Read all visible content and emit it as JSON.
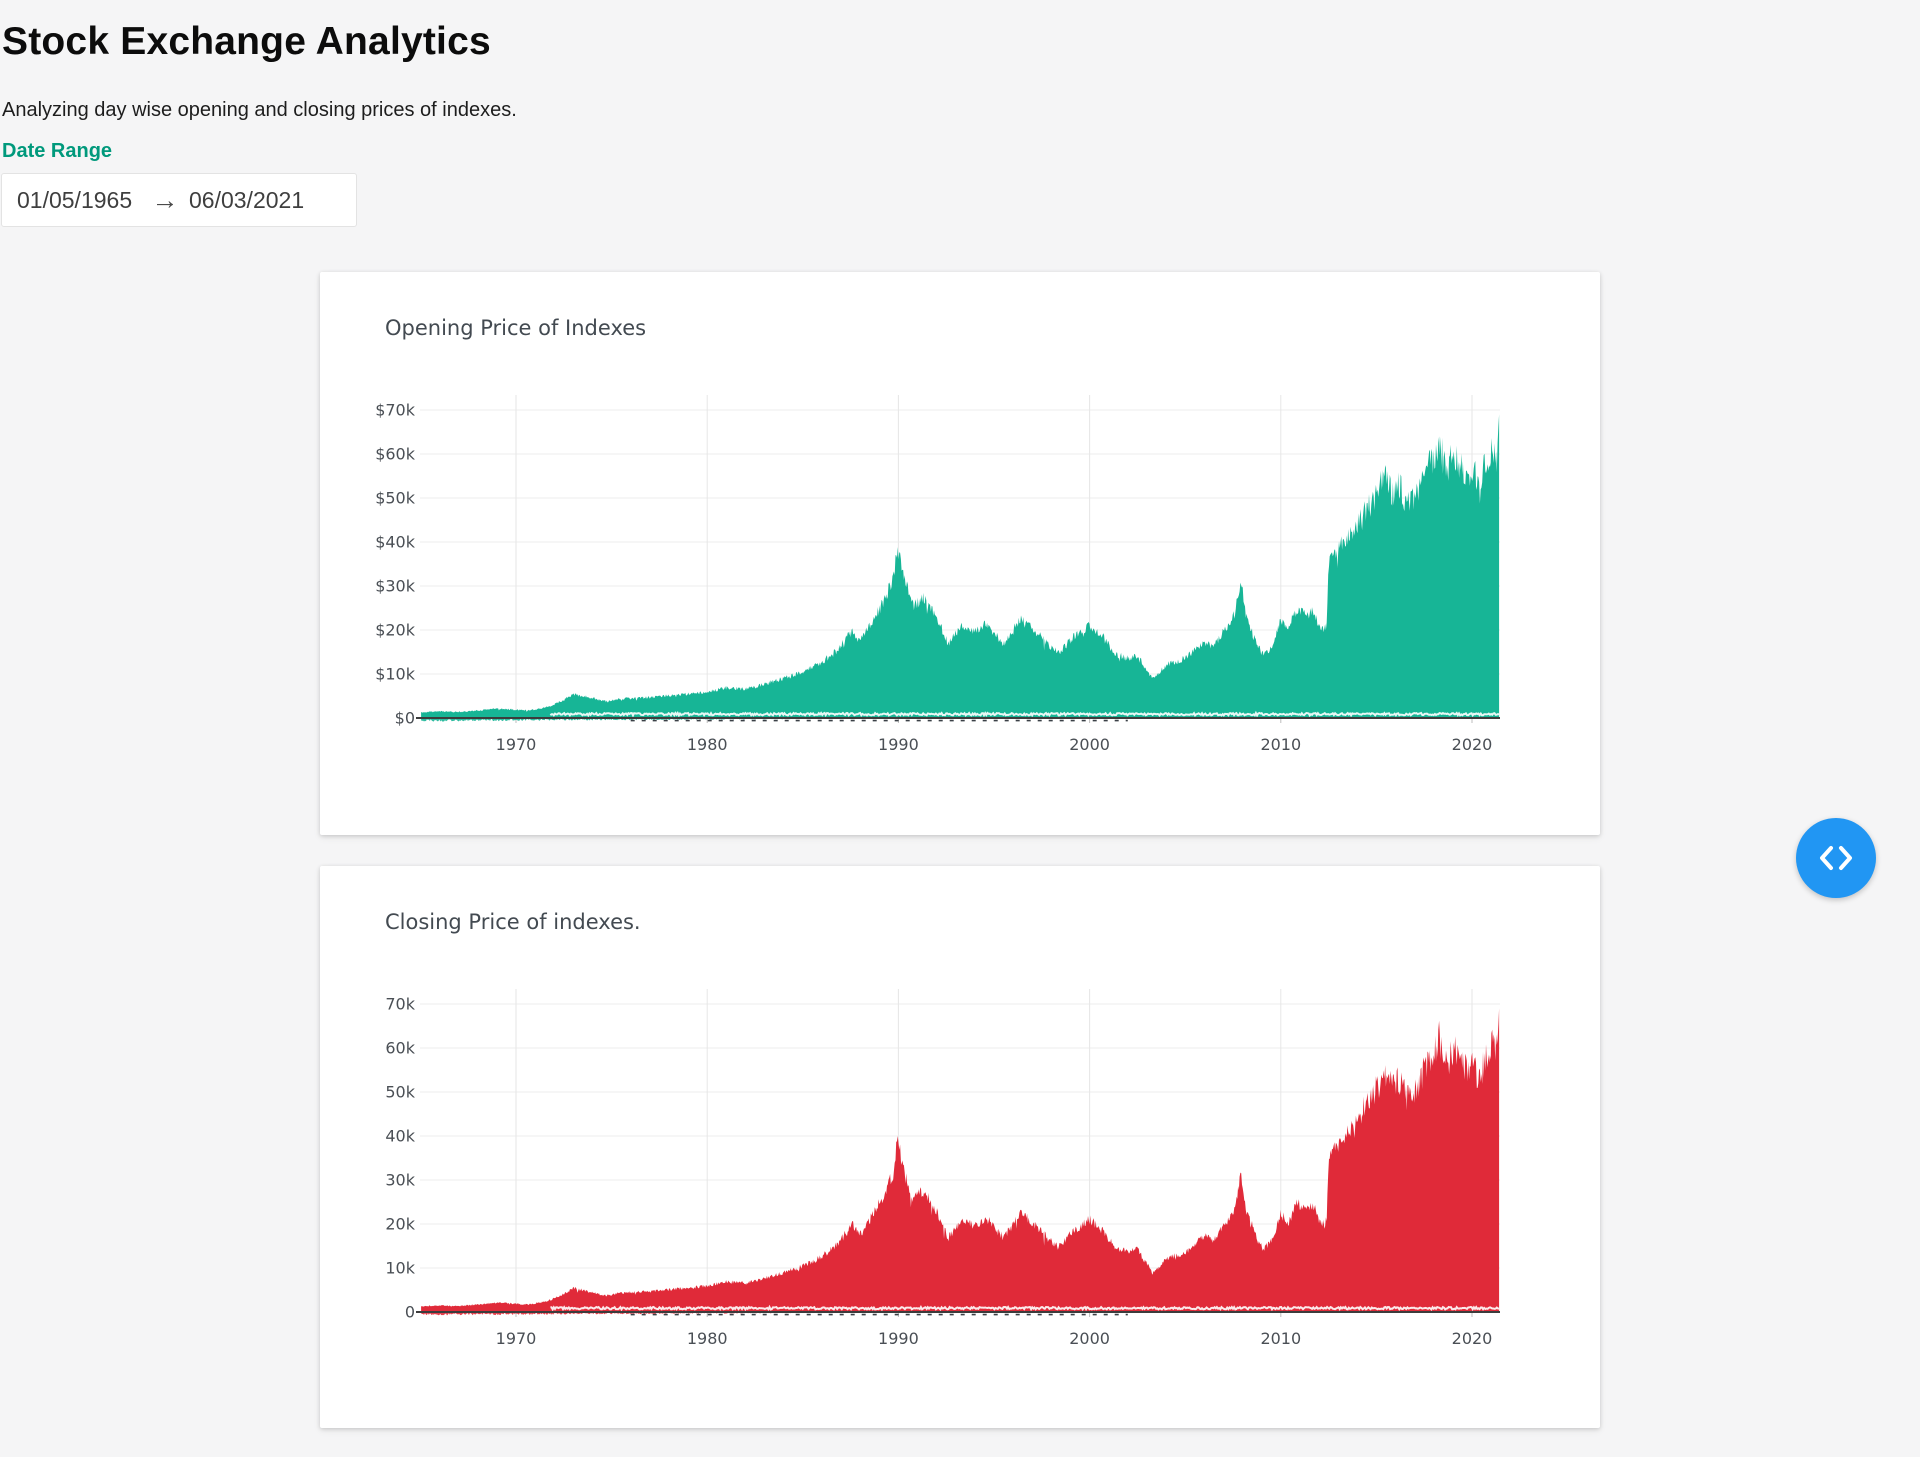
{
  "page": {
    "title": "Stock Exchange Analytics",
    "subtitle": "Analyzing day wise opening and closing prices of indexes.",
    "date_range": {
      "label": "Date Range",
      "start": "01/05/1965",
      "end": "06/03/2021",
      "arrow": "→"
    },
    "fab_button": {
      "icon": "code-chevrons-icon"
    }
  },
  "colors": {
    "background": "#F5F5F6",
    "card": "#FFFFFF",
    "accent_teal": "#00997C",
    "opening_fill": "#17B596",
    "closing_fill": "#E02A39",
    "button_blue": "#2196F3",
    "axis_line": "#3C3C3C",
    "grid_line": "#EAEAEA",
    "tick_text": "#4A4F55"
  },
  "chart_data": [
    {
      "type": "area",
      "title": "Opening Price of Indexes",
      "xlabel": "",
      "ylabel": "",
      "xticks": [
        1970,
        1980,
        1990,
        2000,
        2010,
        2020
      ],
      "ytick_labels": [
        "$0",
        "$10k",
        "$20k",
        "$30k",
        "$40k",
        "$50k",
        "$60k",
        "$70k"
      ],
      "xlim": [
        1964.98,
        2021.45
      ],
      "ylim": [
        0,
        70
      ],
      "grid": true,
      "legend_position": "none",
      "value_unit": "thousands",
      "series": [
        {
          "name": "opening-price",
          "color": "#17B596",
          "points_year_value_thousands": [
            [
              1965.04,
              1.3
            ],
            [
              1965.5,
              1.4
            ],
            [
              1966,
              1.5
            ],
            [
              1966.5,
              1.4
            ],
            [
              1967,
              1.4
            ],
            [
              1967.5,
              1.5
            ],
            [
              1968,
              1.7
            ],
            [
              1968.5,
              1.9
            ],
            [
              1969,
              2.1
            ],
            [
              1969.5,
              2
            ],
            [
              1970,
              1.9
            ],
            [
              1970.6,
              1.7
            ],
            [
              1971.2,
              2.1
            ],
            [
              1971.8,
              2.7
            ],
            [
              1972.4,
              3.9
            ],
            [
              1973,
              5.4
            ],
            [
              1973.5,
              5
            ],
            [
              1974.1,
              4.4
            ],
            [
              1974.7,
              3.7
            ],
            [
              1975.3,
              4.2
            ],
            [
              1976,
              4.5
            ],
            [
              1977,
              4.7
            ],
            [
              1978,
              5.1
            ],
            [
              1979,
              5.5
            ],
            [
              1980,
              5.9
            ],
            [
              1981,
              6.9
            ],
            [
              1982,
              6.6
            ],
            [
              1983,
              7.7
            ],
            [
              1984,
              9
            ],
            [
              1985,
              10.4
            ],
            [
              1986,
              12.6
            ],
            [
              1986.8,
              15.4
            ],
            [
              1987.6,
              19.8
            ],
            [
              1988,
              17.4
            ],
            [
              1988.6,
              21.6
            ],
            [
              1989.2,
              26.2
            ],
            [
              1989.75,
              32
            ],
            [
              1989.95,
              39
            ],
            [
              1990.35,
              30.8
            ],
            [
              1990.8,
              25.4
            ],
            [
              1991.3,
              27.6
            ],
            [
              1992,
              23
            ],
            [
              1992.6,
              16.8
            ],
            [
              1993.3,
              20.8
            ],
            [
              1994,
              19.8
            ],
            [
              1994.6,
              21.3
            ],
            [
              1995.5,
              16.9
            ],
            [
              1996.4,
              22.4
            ],
            [
              1997.2,
              19.6
            ],
            [
              1997.9,
              16.4
            ],
            [
              1998.4,
              14.8
            ],
            [
              1999.2,
              18.6
            ],
            [
              2000,
              21
            ],
            [
              2000.7,
              18.4
            ],
            [
              2001.4,
              14.4
            ],
            [
              2002,
              13.6
            ],
            [
              2002.5,
              14.2
            ],
            [
              2003.3,
              8.9
            ],
            [
              2004,
              12
            ],
            [
              2005,
              13.6
            ],
            [
              2006,
              17.2
            ],
            [
              2006.5,
              16.2
            ],
            [
              2007,
              19.6
            ],
            [
              2007.6,
              23.6
            ],
            [
              2007.9,
              31.4
            ],
            [
              2008.2,
              23.2
            ],
            [
              2008.7,
              17.2
            ],
            [
              2009.1,
              14.2
            ],
            [
              2009.6,
              16.8
            ],
            [
              2010,
              22.4
            ],
            [
              2010.4,
              20.2
            ],
            [
              2010.8,
              24.8
            ],
            [
              2011.3,
              23.4
            ],
            [
              2011.7,
              24.2
            ],
            [
              2012.1,
              20.2
            ],
            [
              2012.4,
              20.6
            ],
            [
              2012.5,
              35
            ],
            [
              2013,
              38.4
            ],
            [
              2013.6,
              41.6
            ],
            [
              2014.2,
              45.2
            ],
            [
              2014.8,
              49.6
            ],
            [
              2015.4,
              54.6
            ],
            [
              2015.9,
              50.8
            ],
            [
              2016.2,
              53
            ],
            [
              2016.6,
              48.4
            ],
            [
              2017,
              50.6
            ],
            [
              2017.5,
              54.6
            ],
            [
              2018,
              59.4
            ],
            [
              2018.3,
              62.4
            ],
            [
              2018.65,
              56.4
            ],
            [
              2019,
              59.6
            ],
            [
              2019.45,
              57
            ],
            [
              2019.85,
              54.6
            ],
            [
              2020.1,
              58.8
            ],
            [
              2020.3,
              52.6
            ],
            [
              2020.65,
              56.6
            ],
            [
              2021,
              60.8
            ],
            [
              2021.2,
              59.2
            ],
            [
              2021.35,
              63
            ],
            [
              2021.42,
              69
            ]
          ]
        }
      ]
    },
    {
      "type": "area",
      "title": "Closing Price of indexes.",
      "xlabel": "",
      "ylabel": "",
      "xticks": [
        1970,
        1980,
        1990,
        2000,
        2010,
        2020
      ],
      "ytick_labels": [
        "0",
        "10k",
        "20k",
        "30k",
        "40k",
        "50k",
        "60k",
        "70k"
      ],
      "xlim": [
        1964.98,
        2021.45
      ],
      "ylim": [
        0,
        70
      ],
      "grid": true,
      "legend_position": "none",
      "value_unit": "thousands",
      "series": [
        {
          "name": "closing-price",
          "color": "#E02A39",
          "points_year_value_thousands": [
            [
              1965.04,
              1.3
            ],
            [
              1965.5,
              1.4
            ],
            [
              1966,
              1.5
            ],
            [
              1966.5,
              1.4
            ],
            [
              1967,
              1.4
            ],
            [
              1967.5,
              1.5
            ],
            [
              1968,
              1.7
            ],
            [
              1968.5,
              1.9
            ],
            [
              1969,
              2.1
            ],
            [
              1969.5,
              2
            ],
            [
              1970,
              1.9
            ],
            [
              1970.6,
              1.7
            ],
            [
              1971.2,
              2.1
            ],
            [
              1971.8,
              2.7
            ],
            [
              1972.4,
              3.9
            ],
            [
              1973,
              5.4
            ],
            [
              1973.5,
              5
            ],
            [
              1974.1,
              4.4
            ],
            [
              1974.7,
              3.7
            ],
            [
              1975.3,
              4.2
            ],
            [
              1976,
              4.5
            ],
            [
              1977,
              4.7
            ],
            [
              1978,
              5.1
            ],
            [
              1979,
              5.5
            ],
            [
              1980,
              5.9
            ],
            [
              1981,
              6.9
            ],
            [
              1982,
              6.6
            ],
            [
              1983,
              7.7
            ],
            [
              1984,
              9
            ],
            [
              1985,
              10.4
            ],
            [
              1986,
              12.6
            ],
            [
              1986.8,
              15.4
            ],
            [
              1987.6,
              19.8
            ],
            [
              1988,
              17.4
            ],
            [
              1988.6,
              21.6
            ],
            [
              1989.2,
              26.2
            ],
            [
              1989.75,
              32
            ],
            [
              1989.95,
              39
            ],
            [
              1990.35,
              30.8
            ],
            [
              1990.8,
              25.4
            ],
            [
              1991.3,
              27.6
            ],
            [
              1992,
              23
            ],
            [
              1992.6,
              16.8
            ],
            [
              1993.3,
              20.8
            ],
            [
              1994,
              19.8
            ],
            [
              1994.6,
              21.3
            ],
            [
              1995.5,
              16.9
            ],
            [
              1996.4,
              22.4
            ],
            [
              1997.2,
              19.6
            ],
            [
              1997.9,
              16.4
            ],
            [
              1998.4,
              14.8
            ],
            [
              1999.2,
              18.6
            ],
            [
              2000,
              21
            ],
            [
              2000.7,
              18.4
            ],
            [
              2001.4,
              14.4
            ],
            [
              2002,
              13.6
            ],
            [
              2002.5,
              14.2
            ],
            [
              2003.3,
              8.9
            ],
            [
              2004,
              12
            ],
            [
              2005,
              13.6
            ],
            [
              2006,
              17.2
            ],
            [
              2006.5,
              16.2
            ],
            [
              2007,
              19.6
            ],
            [
              2007.6,
              23.6
            ],
            [
              2007.9,
              31.4
            ],
            [
              2008.2,
              23.2
            ],
            [
              2008.7,
              17.2
            ],
            [
              2009.1,
              14.2
            ],
            [
              2009.6,
              16.8
            ],
            [
              2010,
              22.4
            ],
            [
              2010.4,
              20.2
            ],
            [
              2010.8,
              24.8
            ],
            [
              2011.3,
              23.4
            ],
            [
              2011.7,
              24.2
            ],
            [
              2012.1,
              20.2
            ],
            [
              2012.4,
              20.6
            ],
            [
              2012.5,
              35
            ],
            [
              2013,
              38.4
            ],
            [
              2013.6,
              41.6
            ],
            [
              2014.2,
              45.2
            ],
            [
              2014.8,
              49.6
            ],
            [
              2015.4,
              54.6
            ],
            [
              2015.9,
              50.8
            ],
            [
              2016.2,
              53
            ],
            [
              2016.6,
              48.4
            ],
            [
              2017,
              50.6
            ],
            [
              2017.5,
              54.6
            ],
            [
              2018,
              59.4
            ],
            [
              2018.3,
              62.4
            ],
            [
              2018.65,
              56.4
            ],
            [
              2019,
              59.6
            ],
            [
              2019.45,
              57
            ],
            [
              2019.85,
              54.6
            ],
            [
              2020.1,
              58.8
            ],
            [
              2020.3,
              52.6
            ],
            [
              2020.65,
              56.6
            ],
            [
              2021,
              60.8
            ],
            [
              2021.2,
              59.2
            ],
            [
              2021.35,
              63
            ],
            [
              2021.42,
              69
            ]
          ]
        }
      ]
    }
  ]
}
